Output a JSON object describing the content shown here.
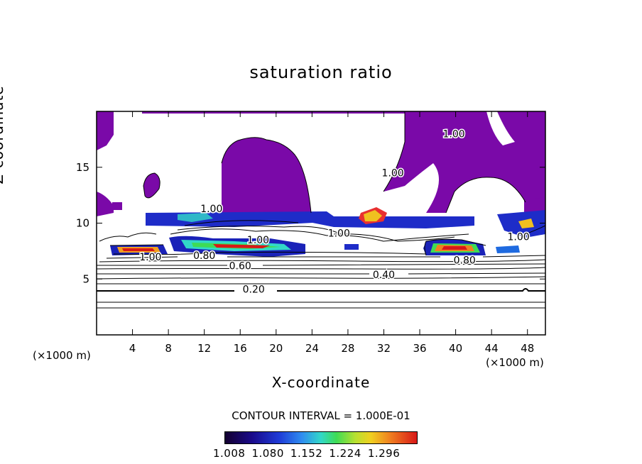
{
  "chart_data": {
    "type": "heatmap",
    "title": "saturation ratio",
    "xlabel": "X-coordinate",
    "ylabel": "Z-coordinate",
    "x_unit": "(×1000 m)",
    "y_unit": "(×1000 m)",
    "xlim": [
      0,
      50
    ],
    "ylim": [
      0,
      20
    ],
    "x_ticks": [
      4,
      8,
      12,
      16,
      20,
      24,
      28,
      32,
      36,
      40,
      44,
      48
    ],
    "y_ticks": [
      5,
      10,
      15
    ],
    "contour_interval_text": "CONTOUR INTERVAL = 1.000E-01",
    "contour_levels": [
      {
        "label": "0.20",
        "x": 17.5,
        "y": 4.1
      },
      {
        "label": "0.40",
        "x": 32.0,
        "y": 5.4
      },
      {
        "label": "0.60",
        "x": 16.0,
        "y": 6.2
      },
      {
        "label": "0.80",
        "x": 12.0,
        "y": 7.1
      },
      {
        "label": "0.80",
        "x": 41.0,
        "y": 6.7
      },
      {
        "label": "1.00",
        "x": 6.0,
        "y": 7.0
      },
      {
        "label": "1.00",
        "x": 12.8,
        "y": 11.3
      },
      {
        "label": "1.00",
        "x": 18.0,
        "y": 8.5
      },
      {
        "label": "1.00",
        "x": 27.0,
        "y": 9.1
      },
      {
        "label": "1.00",
        "x": 33.0,
        "y": 14.5
      },
      {
        "label": "1.00",
        "x": 47.0,
        "y": 8.8
      },
      {
        "label": "1.00",
        "x": 39.8,
        "y": 18.0
      }
    ],
    "colorbar": {
      "ticks": [
        "1.008",
        "1.080",
        "1.152",
        "1.224",
        "1.296"
      ],
      "colors": [
        "#140030",
        "#1a0a8a",
        "#1e3ad6",
        "#2f8cf0",
        "#32d8c8",
        "#3edc55",
        "#b8e030",
        "#f0d020",
        "#f08020",
        "#d81818"
      ]
    },
    "supersaturated_color": "#7a09a8"
  }
}
